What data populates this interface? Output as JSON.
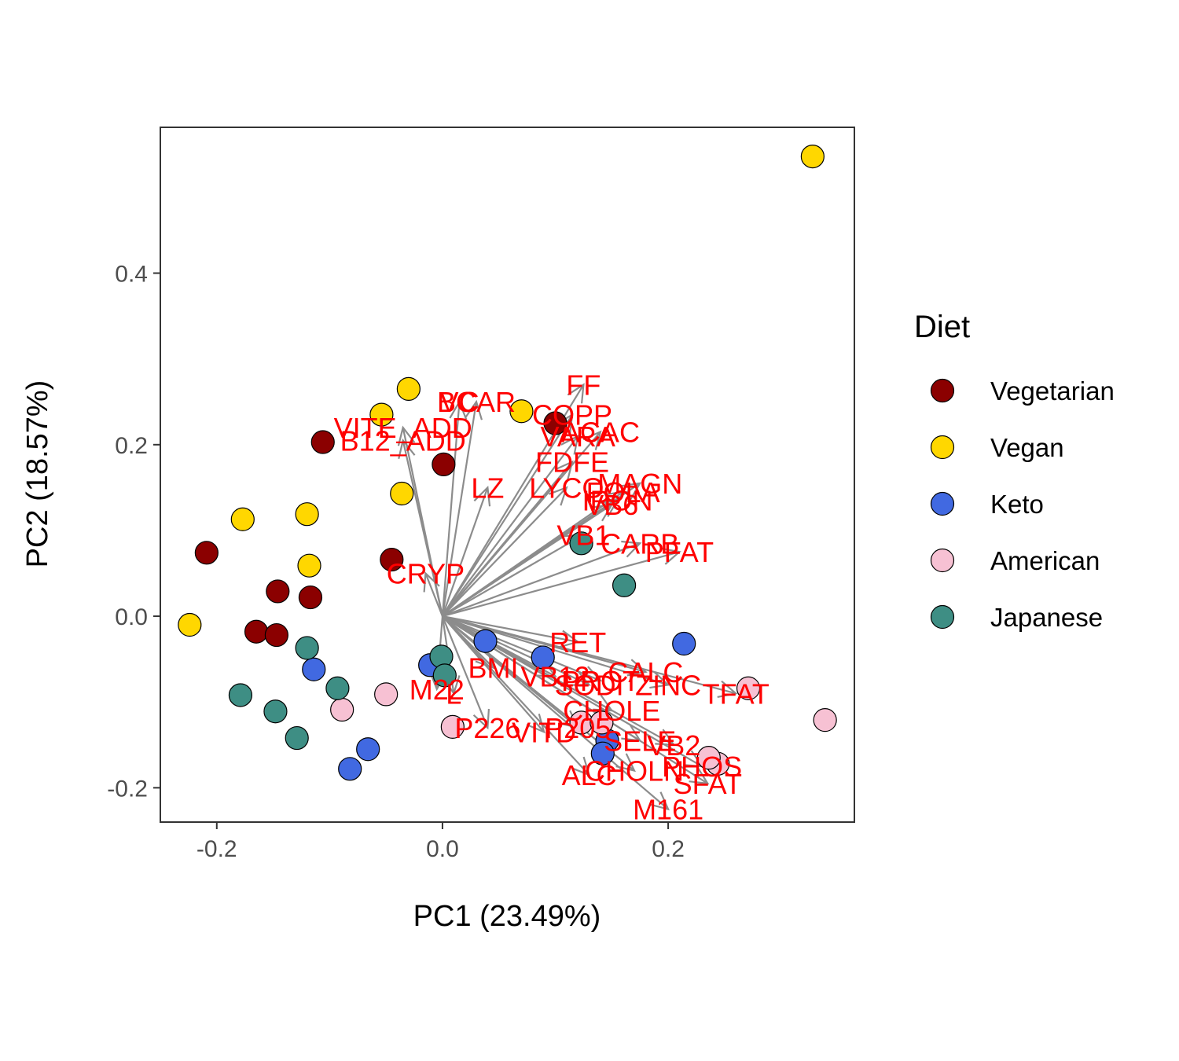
{
  "chart_data": {
    "type": "scatter",
    "subtype": "pca-biplot",
    "xlabel": "PC1 (23.49%)",
    "ylabel": "PC2 (18.57%)",
    "xlim": [
      -0.25,
      0.365
    ],
    "ylim": [
      -0.24,
      0.57
    ],
    "x_ticks": [
      -0.2,
      0.0,
      0.2
    ],
    "x_tick_labels": [
      "-0.2",
      "0.0",
      "0.2"
    ],
    "y_ticks": [
      -0.2,
      0.0,
      0.2,
      0.4
    ],
    "y_tick_labels": [
      "-0.2",
      "0.0",
      "0.2",
      "0.4"
    ],
    "grid": false,
    "legend": {
      "title": "Diet",
      "placement": "right",
      "entries": [
        {
          "label": "Vegetarian",
          "color": "#8b0000"
        },
        {
          "label": "Vegan",
          "color": "#ffd700"
        },
        {
          "label": "Keto",
          "color": "#4169e1"
        },
        {
          "label": "American",
          "color": "#f7c1d3"
        },
        {
          "label": "Japanese",
          "color": "#3e8e84"
        }
      ]
    },
    "colors": {
      "arrow": "#8c8c8c",
      "loading_label": "#ff0000",
      "point_outline": "#000000"
    },
    "loadings": [
      {
        "label": "VC",
        "x": 0.015,
        "y": 0.25
      },
      {
        "label": "BCAR",
        "x": 0.03,
        "y": 0.25
      },
      {
        "label": "FF",
        "x": 0.125,
        "y": 0.27
      },
      {
        "label": "VITE_ADD",
        "x": -0.035,
        "y": 0.22
      },
      {
        "label": "COPP",
        "x": 0.115,
        "y": 0.235
      },
      {
        "label": "B12_ADD",
        "x": -0.035,
        "y": 0.205
      },
      {
        "label": "VARA",
        "x": 0.12,
        "y": 0.21
      },
      {
        "label": "ACAC",
        "x": 0.14,
        "y": 0.215
      },
      {
        "label": "FDFE",
        "x": 0.115,
        "y": 0.18
      },
      {
        "label": "LZ",
        "x": 0.04,
        "y": 0.15
      },
      {
        "label": "LYCO",
        "x": 0.11,
        "y": 0.15
      },
      {
        "label": "MAGN",
        "x": 0.175,
        "y": 0.155
      },
      {
        "label": "FOLA",
        "x": 0.16,
        "y": 0.145
      },
      {
        "label": "IRON",
        "x": 0.155,
        "y": 0.135
      },
      {
        "label": "VB6",
        "x": 0.15,
        "y": 0.13
      },
      {
        "label": "VB1",
        "x": 0.125,
        "y": 0.095
      },
      {
        "label": "CARB",
        "x": 0.175,
        "y": 0.085
      },
      {
        "label": "PFAT",
        "x": 0.21,
        "y": 0.075
      },
      {
        "label": "CRYP",
        "x": -0.015,
        "y": 0.05
      },
      {
        "label": "RET",
        "x": 0.12,
        "y": -0.03
      },
      {
        "label": "CALC",
        "x": 0.18,
        "y": -0.065
      },
      {
        "label": "BMI",
        "x": 0.045,
        "y": -0.06
      },
      {
        "label": "VB12",
        "x": 0.1,
        "y": -0.07
      },
      {
        "label": "PROT",
        "x": 0.14,
        "y": -0.075
      },
      {
        "label": "SODI",
        "x": 0.13,
        "y": -0.08
      },
      {
        "label": "ZINC",
        "x": 0.2,
        "y": -0.08
      },
      {
        "label": "TFAT",
        "x": 0.26,
        "y": -0.09
      },
      {
        "label": "M22",
        "x": -0.005,
        "y": -0.085
      },
      {
        "label": "L",
        "x": 0.01,
        "y": -0.09
      },
      {
        "label": "CHOLE",
        "x": 0.15,
        "y": -0.11
      },
      {
        "label": "P226",
        "x": 0.04,
        "y": -0.13
      },
      {
        "label": "VITD",
        "x": 0.09,
        "y": -0.135
      },
      {
        "label": "P205",
        "x": 0.12,
        "y": -0.13
      },
      {
        "label": "SELE",
        "x": 0.175,
        "y": -0.145
      },
      {
        "label": "VB2",
        "x": 0.205,
        "y": -0.15
      },
      {
        "label": "PHOS",
        "x": 0.23,
        "y": -0.175
      },
      {
        "label": "ALC",
        "x": 0.13,
        "y": -0.185
      },
      {
        "label": "CHOLN",
        "x": 0.17,
        "y": -0.18
      },
      {
        "label": "SFAT",
        "x": 0.235,
        "y": -0.195
      },
      {
        "label": "M161",
        "x": 0.2,
        "y": -0.225
      }
    ],
    "points": [
      {
        "x": 0.328,
        "y": 0.536,
        "group": "Vegan"
      },
      {
        "x": -0.03,
        "y": 0.265,
        "group": "Vegan"
      },
      {
        "x": -0.054,
        "y": 0.235,
        "group": "Vegan"
      },
      {
        "x": 0.07,
        "y": 0.239,
        "group": "Vegan"
      },
      {
        "x": -0.036,
        "y": 0.143,
        "group": "Vegan"
      },
      {
        "x": -0.177,
        "y": 0.113,
        "group": "Vegan"
      },
      {
        "x": -0.12,
        "y": 0.119,
        "group": "Vegan"
      },
      {
        "x": -0.118,
        "y": 0.059,
        "group": "Vegan"
      },
      {
        "x": -0.224,
        "y": -0.01,
        "group": "Vegan"
      },
      {
        "x": 0.1,
        "y": 0.225,
        "group": "Vegetarian"
      },
      {
        "x": -0.106,
        "y": 0.203,
        "group": "Vegetarian"
      },
      {
        "x": 0.001,
        "y": 0.177,
        "group": "Vegetarian"
      },
      {
        "x": -0.209,
        "y": 0.074,
        "group": "Vegetarian"
      },
      {
        "x": -0.045,
        "y": 0.066,
        "group": "Vegetarian"
      },
      {
        "x": -0.146,
        "y": 0.029,
        "group": "Vegetarian"
      },
      {
        "x": -0.117,
        "y": 0.022,
        "group": "Vegetarian"
      },
      {
        "x": -0.165,
        "y": -0.018,
        "group": "Vegetarian"
      },
      {
        "x": -0.147,
        "y": -0.022,
        "group": "Vegetarian"
      },
      {
        "x": 0.214,
        "y": -0.032,
        "group": "Keto"
      },
      {
        "x": 0.038,
        "y": -0.029,
        "group": "Keto"
      },
      {
        "x": 0.089,
        "y": -0.048,
        "group": "Keto"
      },
      {
        "x": -0.011,
        "y": -0.057,
        "group": "Keto"
      },
      {
        "x": -0.114,
        "y": -0.062,
        "group": "Keto"
      },
      {
        "x": -0.066,
        "y": -0.155,
        "group": "Keto"
      },
      {
        "x": -0.082,
        "y": -0.178,
        "group": "Keto"
      },
      {
        "x": 0.146,
        "y": -0.145,
        "group": "Keto"
      },
      {
        "x": 0.142,
        "y": -0.16,
        "group": "Keto"
      },
      {
        "x": 0.271,
        "y": -0.084,
        "group": "American"
      },
      {
        "x": 0.339,
        "y": -0.121,
        "group": "American"
      },
      {
        "x": -0.05,
        "y": -0.091,
        "group": "American"
      },
      {
        "x": -0.089,
        "y": -0.109,
        "group": "American"
      },
      {
        "x": 0.009,
        "y": -0.129,
        "group": "American"
      },
      {
        "x": 0.123,
        "y": -0.124,
        "group": "American"
      },
      {
        "x": 0.141,
        "y": -0.124,
        "group": "American"
      },
      {
        "x": 0.244,
        "y": -0.172,
        "group": "American"
      },
      {
        "x": 0.236,
        "y": -0.165,
        "group": "American"
      },
      {
        "x": 0.123,
        "y": 0.085,
        "group": "Japanese"
      },
      {
        "x": 0.161,
        "y": 0.036,
        "group": "Japanese"
      },
      {
        "x": -0.12,
        "y": -0.037,
        "group": "Japanese"
      },
      {
        "x": -0.001,
        "y": -0.047,
        "group": "Japanese"
      },
      {
        "x": 0.002,
        "y": -0.069,
        "group": "Japanese"
      },
      {
        "x": -0.093,
        "y": -0.084,
        "group": "Japanese"
      },
      {
        "x": -0.179,
        "y": -0.092,
        "group": "Japanese"
      },
      {
        "x": -0.148,
        "y": -0.111,
        "group": "Japanese"
      },
      {
        "x": -0.129,
        "y": -0.142,
        "group": "Japanese"
      }
    ]
  }
}
